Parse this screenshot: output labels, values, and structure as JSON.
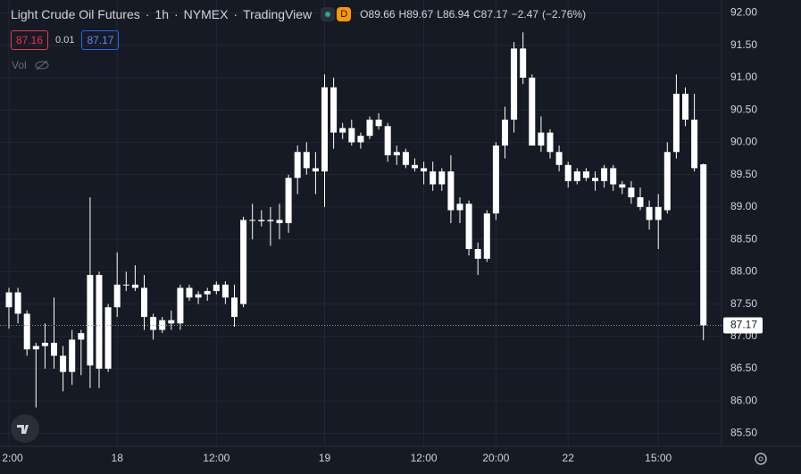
{
  "chart_data": {
    "type": "candlestick",
    "title": "Light Crude Oil Futures",
    "interval": "1h",
    "exchange": "NYMEX",
    "source": "TradingView",
    "badge": "D",
    "ohlc_prefixes": [
      "O",
      "H",
      "L",
      "C"
    ],
    "change": {
      "value": -2.47,
      "label": "−2.47"
    },
    "change_pct": {
      "value": -2.76,
      "label": "(−2.76%)"
    },
    "bid": 87.16,
    "spread": 0.01,
    "ask": 87.17,
    "volume_label": "Vol",
    "color": "#ffffff",
    "grid": true,
    "last_price_line": true,
    "categories": [
      "2:00",
      null,
      null,
      null,
      null,
      null,
      null,
      null,
      null,
      null,
      null,
      null,
      "18",
      null,
      null,
      null,
      null,
      null,
      null,
      null,
      null,
      null,
      null,
      "12:00",
      null,
      null,
      null,
      null,
      null,
      null,
      null,
      null,
      null,
      null,
      null,
      "19",
      null,
      null,
      null,
      null,
      null,
      null,
      null,
      null,
      null,
      null,
      "12:00",
      null,
      null,
      null,
      null,
      null,
      null,
      null,
      "20:00",
      null,
      null,
      null,
      null,
      null,
      null,
      null,
      "22",
      null,
      null,
      null,
      null,
      null,
      null,
      null,
      null,
      null,
      "15:00",
      null,
      null,
      null,
      null,
      null
    ],
    "open": [
      87.45,
      87.68,
      87.35,
      86.8,
      86.85,
      86.9,
      86.7,
      86.45,
      86.95,
      86.55,
      87.95,
      86.5,
      87.45,
      87.8,
      87.8,
      87.75,
      87.3,
      87.1,
      87.25,
      87.2,
      87.75,
      87.6,
      87.65,
      87.7,
      87.8,
      87.6,
      87.5,
      88.8,
      88.8,
      88.78,
      88.8,
      88.75,
      89.45,
      89.85,
      89.6,
      89.55,
      90.85,
      90.15,
      90.22,
      90.0,
      90.1,
      90.35,
      90.25,
      89.8,
      89.85,
      89.65,
      89.6,
      89.55,
      89.35,
      89.55,
      88.95,
      89.05,
      88.35,
      88.2,
      88.9,
      89.95,
      90.35,
      91.45,
      91.0,
      89.95,
      90.15,
      89.85,
      89.65,
      89.4,
      89.55,
      89.45,
      89.4,
      89.6,
      89.35,
      89.3,
      89.15,
      89.0,
      88.8,
      88.95,
      89.85,
      90.75,
      90.35,
      89.66
    ],
    "high": [
      87.75,
      87.75,
      87.4,
      86.9,
      87.2,
      87.6,
      86.85,
      87.1,
      87.1,
      89.15,
      88.0,
      87.5,
      88.3,
      88.0,
      88.1,
      87.95,
      87.35,
      87.3,
      87.4,
      87.8,
      87.8,
      87.7,
      87.75,
      87.85,
      87.85,
      87.8,
      88.85,
      89.05,
      88.95,
      89.0,
      89.05,
      89.5,
      89.95,
      90.0,
      89.85,
      91.05,
      91.0,
      90.3,
      90.35,
      90.15,
      90.4,
      90.45,
      90.3,
      89.95,
      89.9,
      89.75,
      89.7,
      89.7,
      89.6,
      89.8,
      89.15,
      89.1,
      88.45,
      88.95,
      90.0,
      90.55,
      91.55,
      91.7,
      91.05,
      90.4,
      90.2,
      89.95,
      89.7,
      89.6,
      89.6,
      89.55,
      89.65,
      89.65,
      89.4,
      89.4,
      89.3,
      89.1,
      89.2,
      90.0,
      91.05,
      90.85,
      90.75,
      89.67
    ],
    "low": [
      87.12,
      87.2,
      86.7,
      85.9,
      86.5,
      86.5,
      86.15,
      86.25,
      86.4,
      86.2,
      86.2,
      86.45,
      87.3,
      87.7,
      87.7,
      87.1,
      86.95,
      87.05,
      87.1,
      87.1,
      87.55,
      87.5,
      87.55,
      87.65,
      87.5,
      87.15,
      87.45,
      88.5,
      88.7,
      88.4,
      88.5,
      88.6,
      89.2,
      89.5,
      89.2,
      89.0,
      89.9,
      90.05,
      89.95,
      89.9,
      90.05,
      90.2,
      89.7,
      89.65,
      89.6,
      89.55,
      89.35,
      89.25,
      89.25,
      88.75,
      88.75,
      88.25,
      87.95,
      88.15,
      88.8,
      89.75,
      90.15,
      90.9,
      89.95,
      89.85,
      89.75,
      89.55,
      89.3,
      89.35,
      89.4,
      89.25,
      89.3,
      89.25,
      89.2,
      89.05,
      88.95,
      88.65,
      88.35,
      88.9,
      89.75,
      90.25,
      89.55,
      86.94
    ],
    "close": [
      87.68,
      87.35,
      86.8,
      86.85,
      86.9,
      86.7,
      86.45,
      86.95,
      87.05,
      87.95,
      86.5,
      87.45,
      87.8,
      87.8,
      87.75,
      87.3,
      87.1,
      87.25,
      87.2,
      87.75,
      87.6,
      87.65,
      87.7,
      87.8,
      87.6,
      87.3,
      88.8,
      88.8,
      88.78,
      88.8,
      88.75,
      89.45,
      89.85,
      89.6,
      89.55,
      90.85,
      90.15,
      90.22,
      90.0,
      90.1,
      90.35,
      90.25,
      89.8,
      89.85,
      89.65,
      89.6,
      89.55,
      89.35,
      89.55,
      88.95,
      89.05,
      88.35,
      88.2,
      88.9,
      89.95,
      90.35,
      91.45,
      91.0,
      89.95,
      90.15,
      89.85,
      89.65,
      89.4,
      89.55,
      89.45,
      89.4,
      89.6,
      89.35,
      89.3,
      89.15,
      89.0,
      88.8,
      89.0,
      89.85,
      90.75,
      90.35,
      89.6,
      87.17
    ],
    "ylim": [
      85.3,
      92.2
    ],
    "yticks": [
      {
        "value": 85.5,
        "label": "85.50"
      },
      {
        "value": 86,
        "label": "86.00"
      },
      {
        "value": 86.5,
        "label": "86.50"
      },
      {
        "value": 87,
        "label": "87.00"
      },
      {
        "value": 87.5,
        "label": "87.50"
      },
      {
        "value": 88,
        "label": "88.00"
      },
      {
        "value": 88.5,
        "label": "88.50"
      },
      {
        "value": 89,
        "label": "89.00"
      },
      {
        "value": 89.5,
        "label": "89.50"
      },
      {
        "value": 90,
        "label": "90.00"
      },
      {
        "value": 90.5,
        "label": "90.50"
      },
      {
        "value": 91,
        "label": "91.00"
      },
      {
        "value": 91.5,
        "label": "91.50"
      },
      {
        "value": 92,
        "label": "92.00"
      }
    ]
  }
}
